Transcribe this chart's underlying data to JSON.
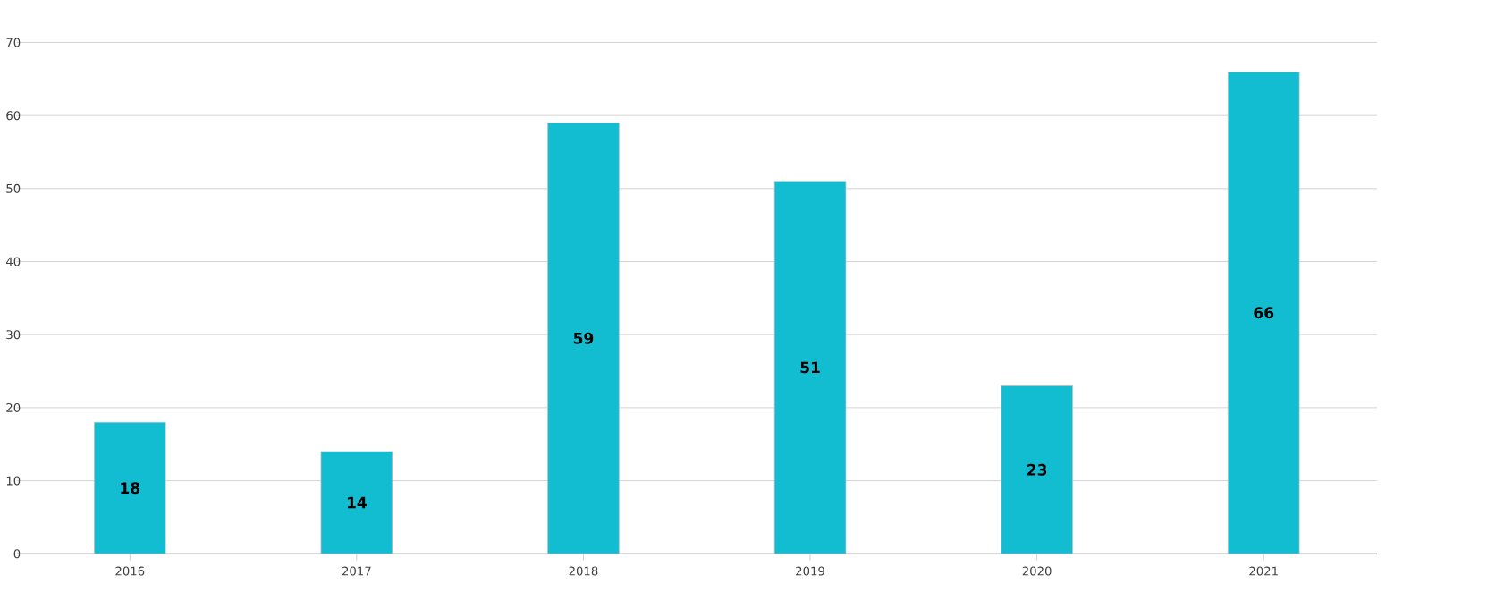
{
  "chart_data": {
    "type": "bar",
    "categories": [
      "2016",
      "2017",
      "2018",
      "2019",
      "2020",
      "2021"
    ],
    "values": [
      18,
      14,
      59,
      51,
      23,
      66
    ],
    "color": "#12bdd2",
    "ylim": [
      0,
      70
    ],
    "yticks": [
      0,
      10,
      20,
      30,
      40,
      50,
      60,
      70
    ],
    "grid": "y",
    "data_labels": true
  }
}
